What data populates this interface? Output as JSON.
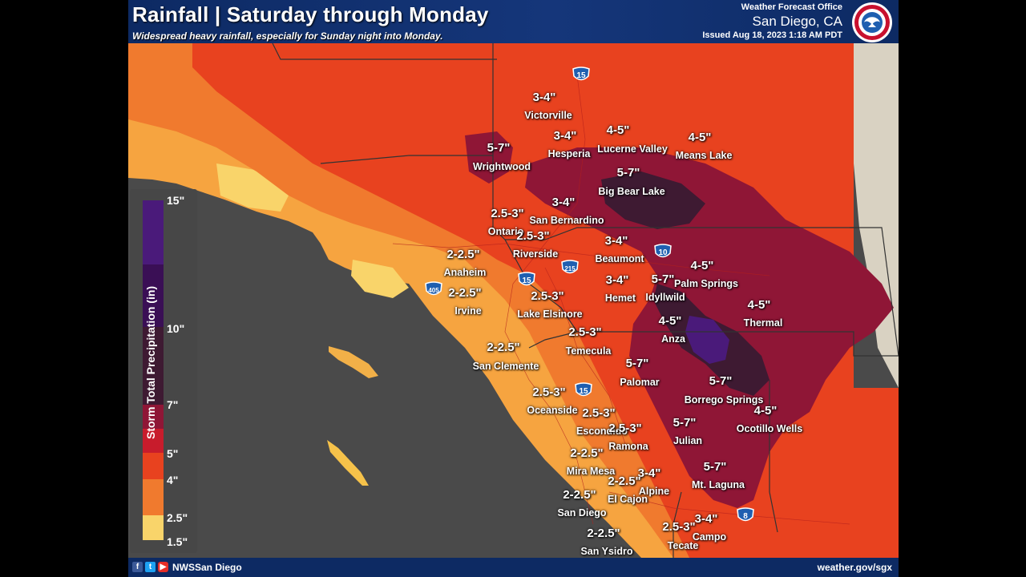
{
  "header": {
    "title": "Rainfall | Saturday through Monday",
    "subtitle": "Widespread heavy rainfall, especially for Sunday night into Monday.",
    "office_label": "Weather Forecast Office",
    "office_name": "San Diego, CA",
    "issued": "Issued Aug 18, 2023 1:18 AM PDT"
  },
  "legend": {
    "title": "Storm Total Precipitation (in)",
    "ticks": [
      "15\"",
      "10\"",
      "7\"",
      "5\"",
      "4\"",
      "2.5\"",
      "1.5\""
    ],
    "colors": [
      "#f9d46a",
      "#f6a440",
      "#f07a2e",
      "#e8421f",
      "#c81c2c",
      "#8f1636",
      "#3e1a32",
      "#3a0f55",
      "#4a1a7a"
    ]
  },
  "labels": [
    {
      "amount": "3-4\"",
      "city": "Victorville"
    },
    {
      "amount": "3-4\"",
      "city": "Hesperia"
    },
    {
      "amount": "4-5\"",
      "city": "Lucerne Valley"
    },
    {
      "amount": "4-5\"",
      "city": "Means Lake"
    },
    {
      "amount": "5-7\"",
      "city": "Wrightwood"
    },
    {
      "amount": "5-7\"",
      "city": "Big Bear Lake"
    },
    {
      "amount": "3-4\"",
      "city": "San Bernardino"
    },
    {
      "amount": "2.5-3\"",
      "city": "Ontario"
    },
    {
      "amount": "2.5-3\"",
      "city": "Riverside"
    },
    {
      "amount": "3-4\"",
      "city": "Beaumont"
    },
    {
      "amount": "2-2.5\"",
      "city": "Anaheim"
    },
    {
      "amount": "2-2.5\"",
      "city": "Irvine"
    },
    {
      "amount": "4-5\"",
      "city": "Palm Springs"
    },
    {
      "amount": "5-7\"",
      "city": "Idyllwild"
    },
    {
      "amount": "3-4\"",
      "city": "Hemet"
    },
    {
      "amount": "2.5-3\"",
      "city": "Lake Elsinore"
    },
    {
      "amount": "4-5\"",
      "city": "Thermal"
    },
    {
      "amount": "4-5\"",
      "city": "Anza"
    },
    {
      "amount": "2.5-3\"",
      "city": "Temecula"
    },
    {
      "amount": "2-2.5\"",
      "city": "San Clemente"
    },
    {
      "amount": "5-7\"",
      "city": "Palomar"
    },
    {
      "amount": "5-7\"",
      "city": "Borrego Springs"
    },
    {
      "amount": "2.5-3\"",
      "city": "Oceanside"
    },
    {
      "amount": "2.5-3\"",
      "city": "Escondido"
    },
    {
      "amount": "2.5-3\"",
      "city": "Ramona"
    },
    {
      "amount": "4-5\"",
      "city": "Ocotillo Wells"
    },
    {
      "amount": "5-7\"",
      "city": "Julian"
    },
    {
      "amount": "2-2.5\"",
      "city": "Mira Mesa"
    },
    {
      "amount": "3-4\"",
      "city": "Alpine"
    },
    {
      "amount": "2-2.5\"",
      "city": "El Cajon"
    },
    {
      "amount": "5-7\"",
      "city": "Mt. Laguna"
    },
    {
      "amount": "2-2.5\"",
      "city": "San Diego"
    },
    {
      "amount": "3-4\"",
      "city": "Campo"
    },
    {
      "amount": "2.5-3\"",
      "city": "Tecate"
    },
    {
      "amount": "2-2.5\"",
      "city": "San Ysidro"
    }
  ],
  "highways": [
    "15",
    "10",
    "215",
    "15",
    "405",
    "15",
    "8"
  ],
  "footer": {
    "social_handle": "NWSSan Diego",
    "website": "weather.gov/sgx"
  },
  "icons": [
    "facebook-icon",
    "twitter-icon",
    "youtube-icon",
    "nws-logo-icon",
    "interstate-shield-icon"
  ]
}
